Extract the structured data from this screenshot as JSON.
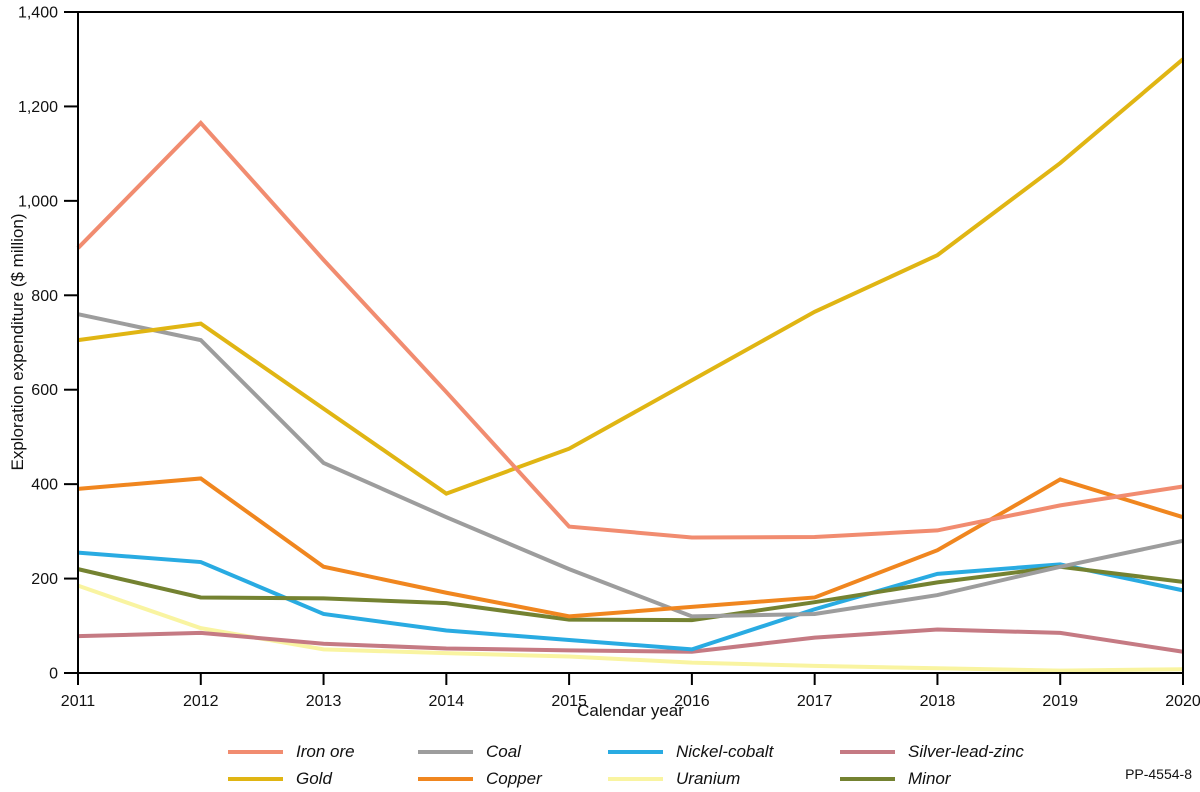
{
  "figure": {
    "code": "PP-4554-8"
  },
  "chart_data": {
    "type": "line",
    "title": "",
    "xlabel": "Calendar year",
    "ylabel": "Exploration expenditure ($ million)",
    "x": [
      2011,
      2012,
      2013,
      2014,
      2015,
      2016,
      2017,
      2018,
      2019,
      2020
    ],
    "xtick_labels": [
      "2011",
      "2012",
      "2013",
      "2014",
      "2015",
      "2016",
      "2017",
      "2018",
      "2019",
      "2020"
    ],
    "ylim": [
      0,
      1400
    ],
    "ytick_interval": 200,
    "yticks": [
      0,
      200,
      400,
      600,
      800,
      1000,
      1200,
      1400
    ],
    "ytick_labels": [
      "0",
      "200",
      "400",
      "600",
      "800",
      "1,000",
      "1,200",
      "1,400"
    ],
    "grid": false,
    "legend_position": "bottom",
    "axis_color": "#000000",
    "line_width": 4,
    "series": [
      {
        "name": "Iron ore",
        "color": "#F18C70",
        "values": [
          900,
          1165,
          875,
          595,
          310,
          287,
          288,
          302,
          355,
          395
        ]
      },
      {
        "name": "Gold",
        "color": "#E0B513",
        "values": [
          705,
          740,
          560,
          380,
          475,
          620,
          765,
          885,
          1080,
          1300
        ]
      },
      {
        "name": "Coal",
        "color": "#9D9D9D",
        "values": [
          760,
          705,
          445,
          330,
          220,
          120,
          125,
          165,
          225,
          280
        ]
      },
      {
        "name": "Copper",
        "color": "#F0861F",
        "values": [
          390,
          412,
          225,
          170,
          120,
          140,
          160,
          260,
          410,
          330
        ]
      },
      {
        "name": "Nickel-cobalt",
        "color": "#29ABE2",
        "values": [
          255,
          235,
          125,
          90,
          70,
          50,
          135,
          210,
          230,
          175
        ]
      },
      {
        "name": "Uranium",
        "color": "#F9F4A1",
        "values": [
          185,
          95,
          50,
          42,
          35,
          22,
          15,
          10,
          5,
          8
        ]
      },
      {
        "name": "Silver-lead-zinc",
        "color": "#C57A83",
        "values": [
          78,
          85,
          62,
          52,
          48,
          45,
          75,
          92,
          85,
          45
        ]
      },
      {
        "name": "Minor",
        "color": "#748231",
        "values": [
          220,
          160,
          158,
          148,
          113,
          112,
          150,
          192,
          225,
          193
        ]
      }
    ],
    "draw_order": [
      "Uranium",
      "Silver-lead-zinc",
      "Nickel-cobalt",
      "Minor",
      "Coal",
      "Copper",
      "Gold",
      "Iron ore"
    ]
  }
}
